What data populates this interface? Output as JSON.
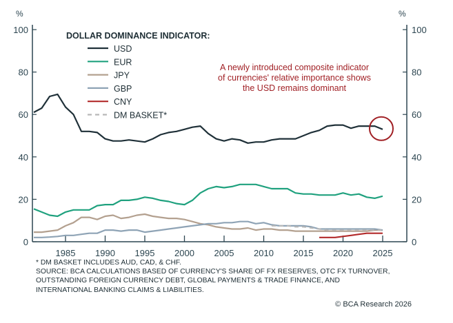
{
  "chart_data": {
    "type": "line",
    "title": "DOLLAR DOMINANCE INDICATOR:",
    "ylabel_left": "%",
    "ylabel_right": "%",
    "ylim": [
      0,
      100
    ],
    "yticks": [
      0,
      20,
      40,
      60,
      80,
      100
    ],
    "xlim": [
      1981,
      2025
    ],
    "xticks": [
      1985,
      1990,
      1995,
      2000,
      2005,
      2010,
      2015,
      2020,
      2025
    ],
    "grid": false,
    "legend_position": "top-left",
    "annotation": [
      "A newly introduced composite indicator",
      "of currencies' relative importance shows",
      "the USD remains dominant"
    ],
    "annotation_color": "#a01f24",
    "series": [
      {
        "name": "USD",
        "color": "#1f3038",
        "dashed": false,
        "x_start": 1981,
        "values": [
          61,
          63,
          68.5,
          69.5,
          63.5,
          60,
          52,
          52,
          51.5,
          48.5,
          47.5,
          47.5,
          48,
          47.5,
          47,
          48.5,
          50.5,
          51.5,
          52,
          53,
          54,
          54.5,
          51,
          48.5,
          47.5,
          48.5,
          48,
          46.5,
          47,
          47,
          48,
          48.5,
          48.5,
          48.5,
          50,
          51.5,
          52.5,
          54.5,
          55,
          55,
          53.5,
          54.5,
          54.5,
          54.5,
          53
        ]
      },
      {
        "name": "EUR",
        "color": "#1fa17e",
        "dashed": false,
        "x_start": 1981,
        "values": [
          15.5,
          14,
          12.5,
          12,
          14,
          15,
          15,
          15,
          17,
          17.5,
          17.5,
          19.5,
          19.5,
          20,
          21,
          20.5,
          19.5,
          19,
          18,
          17.5,
          19.5,
          23,
          25,
          26,
          25.5,
          26,
          27,
          27,
          27,
          26,
          25,
          25,
          25,
          23,
          22.5,
          22.5,
          22,
          22,
          22,
          23,
          22,
          22.5,
          21,
          20.5,
          21.5
        ]
      },
      {
        "name": "JPY",
        "color": "#b3a08f",
        "dashed": false,
        "x_start": 1981,
        "values": [
          4.5,
          4.5,
          5,
          5.5,
          7.5,
          9,
          11.5,
          11.5,
          10.5,
          12,
          12.5,
          11,
          11.5,
          12.5,
          13,
          12,
          11.5,
          11,
          11,
          10.5,
          9.5,
          8.5,
          8,
          7,
          6.5,
          6,
          6,
          6.5,
          5.5,
          6,
          6,
          5.5,
          5.5,
          5,
          5,
          5,
          5,
          5,
          5,
          5,
          5,
          5,
          5,
          5.5,
          5.5
        ]
      },
      {
        "name": "GBP",
        "color": "#8ea3b5",
        "dashed": false,
        "x_start": 1981,
        "values": [
          2,
          2,
          2.2,
          2.5,
          3,
          3,
          3.5,
          4,
          4,
          5.5,
          5.5,
          5,
          5.5,
          5.5,
          4.5,
          5,
          5.5,
          6,
          6.5,
          7,
          7.5,
          8,
          8.5,
          8.5,
          9,
          9,
          9.5,
          9.5,
          8.5,
          9,
          8,
          7.5,
          7.5,
          7.5,
          7.5,
          7,
          6,
          6,
          6,
          6,
          6,
          6,
          6,
          6,
          5.5
        ]
      },
      {
        "name": "CNY",
        "color": "#b22a2a",
        "dashed": false,
        "x_start": 2017,
        "values": [
          2,
          2,
          2,
          2.5,
          3,
          3.5,
          4,
          4,
          4
        ]
      },
      {
        "name": "DM BASKET*",
        "color": "#b8b8b8",
        "dashed": true,
        "x_start": 2011,
        "values": [
          7.5,
          7.5,
          7.5,
          7,
          7,
          6.5,
          6,
          5.5,
          5.5,
          5.5,
          5.5,
          5.5,
          5.5,
          5.5,
          5.5
        ]
      }
    ]
  },
  "notes": [
    "* DM BASKET INCLUDES AUD, CAD, & CHF.",
    "SOURCE: BCA CALCULATIONS BASED OF CURRENCY'S SHARE OF FX RESERVES, OTC FX TURNOVER,",
    "OUTSTANDING FOREIGN CURRENCY DEBT, GLOBAL PAYMENTS & TRADE FINANCE, AND",
    "INTERNATIONAL BANKING CLAIMS & LIABILITIES."
  ],
  "credit": "© BCA Research 2026"
}
